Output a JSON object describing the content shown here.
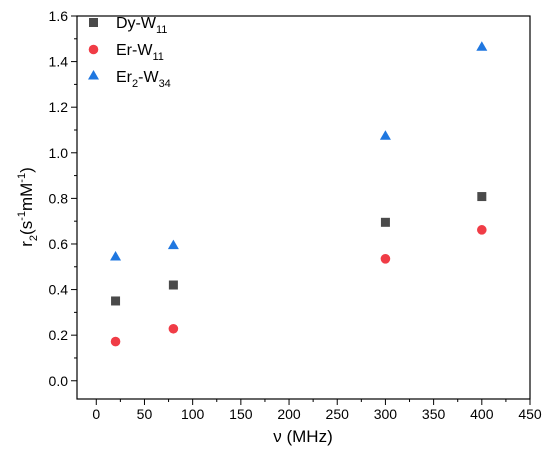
{
  "chart_data": {
    "type": "scatter",
    "xlabel": "ν (MHz)",
    "ylabel": {
      "base": "r",
      "sub": "2",
      "open": "(s",
      "sup1": "-1",
      "mid": "mM",
      "sup2": "-1",
      "close": ")"
    },
    "xlim": [
      -20,
      450
    ],
    "ylim": [
      -0.08,
      1.6
    ],
    "xticks": [
      0,
      50,
      100,
      150,
      200,
      250,
      300,
      350,
      400,
      450
    ],
    "yticks": [
      0.0,
      0.2,
      0.4,
      0.6,
      0.8,
      1.0,
      1.2,
      1.4,
      1.6
    ],
    "grid": false,
    "legend_position": "top-left",
    "series": [
      {
        "name": "Dy-W11",
        "label_main": "Dy-W",
        "label_sub": "11",
        "marker": "square",
        "color": "#4a4a4a",
        "x": [
          20,
          80,
          300,
          400
        ],
        "y": [
          0.35,
          0.42,
          0.695,
          0.808
        ]
      },
      {
        "name": "Er-W11",
        "label_main": "Er-W",
        "label_sub": "11",
        "marker": "circle",
        "color": "#f03c46",
        "x": [
          20,
          80,
          300,
          400
        ],
        "y": [
          0.172,
          0.228,
          0.535,
          0.662
        ]
      },
      {
        "name": "Er2-W34",
        "label_pre": "Er",
        "label_sub1": "2",
        "label_mid": "-W",
        "label_sub2": "34",
        "marker": "triangle",
        "color": "#1f77e0",
        "x": [
          20,
          80,
          300,
          400
        ],
        "y": [
          0.545,
          0.595,
          1.075,
          1.465
        ]
      }
    ]
  }
}
